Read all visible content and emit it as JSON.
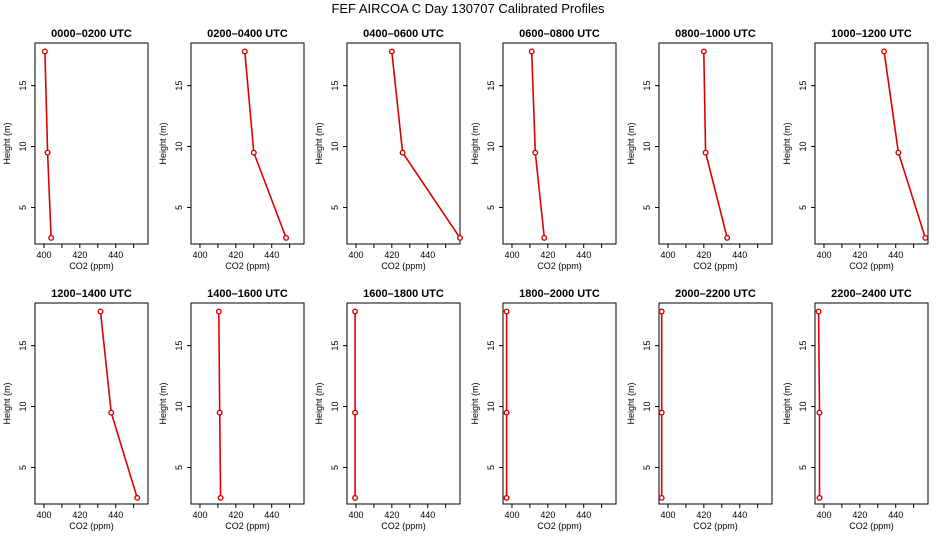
{
  "title": "FEF AIRCOA C  Day 130707  Calibrated Profiles",
  "colors": {
    "line": "#dd0000",
    "axis": "#000000"
  },
  "chart_data": [
    {
      "type": "line",
      "title": "0000–0200 UTC",
      "xlabel": "CO2 (ppm)",
      "ylabel": "Height (m)",
      "xlim": [
        395,
        458
      ],
      "ylim": [
        2,
        18.5
      ],
      "xticks": [
        400,
        420,
        440
      ],
      "yticks": [
        5,
        10,
        15
      ],
      "series": [
        {
          "x": [
            400.5,
            402.0,
            404.0
          ],
          "y": [
            17.8,
            9.5,
            2.5
          ]
        }
      ]
    },
    {
      "type": "line",
      "title": "0200–0400 UTC",
      "xlabel": "CO2 (ppm)",
      "ylabel": "Height (m)",
      "xlim": [
        395,
        458
      ],
      "ylim": [
        2,
        18.5
      ],
      "xticks": [
        400,
        420,
        440
      ],
      "yticks": [
        5,
        10,
        15
      ],
      "series": [
        {
          "x": [
            425.0,
            430.0,
            448.0
          ],
          "y": [
            17.8,
            9.5,
            2.5
          ]
        }
      ]
    },
    {
      "type": "line",
      "title": "0400–0600 UTC",
      "xlabel": "CO2 (ppm)",
      "ylabel": "Height (m)",
      "xlim": [
        395,
        458
      ],
      "ylim": [
        2,
        18.5
      ],
      "xticks": [
        400,
        420,
        440
      ],
      "yticks": [
        5,
        10,
        15
      ],
      "series": [
        {
          "x": [
            420.0,
            426.0,
            458.0
          ],
          "y": [
            17.8,
            9.5,
            2.5
          ]
        }
      ]
    },
    {
      "type": "line",
      "title": "0600–0800 UTC",
      "xlabel": "CO2 (ppm)",
      "ylabel": "Height (m)",
      "xlim": [
        395,
        458
      ],
      "ylim": [
        2,
        18.5
      ],
      "xticks": [
        400,
        420,
        440
      ],
      "yticks": [
        5,
        10,
        15
      ],
      "series": [
        {
          "x": [
            411.0,
            413.0,
            418.0
          ],
          "y": [
            17.8,
            9.5,
            2.5
          ]
        }
      ]
    },
    {
      "type": "line",
      "title": "0800–1000 UTC",
      "xlabel": "CO2 (ppm)",
      "ylabel": "Height (m)",
      "xlim": [
        395,
        458
      ],
      "ylim": [
        2,
        18.5
      ],
      "xticks": [
        400,
        420,
        440
      ],
      "yticks": [
        5,
        10,
        15
      ],
      "series": [
        {
          "x": [
            420.0,
            421.0,
            433.0
          ],
          "y": [
            17.8,
            9.5,
            2.5
          ]
        }
      ]
    },
    {
      "type": "line",
      "title": "1000–1200 UTC",
      "xlabel": "CO2 (ppm)",
      "ylabel": "Height (m)",
      "xlim": [
        395,
        458
      ],
      "ylim": [
        2,
        18.5
      ],
      "xticks": [
        400,
        420,
        440
      ],
      "yticks": [
        5,
        10,
        15
      ],
      "series": [
        {
          "x": [
            433.5,
            441.5,
            456.5
          ],
          "y": [
            17.8,
            9.5,
            2.5
          ]
        }
      ]
    },
    {
      "type": "line",
      "title": "1200–1400 UTC",
      "xlabel": "CO2 (ppm)",
      "ylabel": "Height (m)",
      "xlim": [
        395,
        458
      ],
      "ylim": [
        2,
        18.5
      ],
      "xticks": [
        400,
        420,
        440
      ],
      "yticks": [
        5,
        10,
        15
      ],
      "series": [
        {
          "x": [
            431.5,
            437.5,
            452.0
          ],
          "y": [
            17.8,
            9.5,
            2.5
          ]
        }
      ]
    },
    {
      "type": "line",
      "title": "1400–1600 UTC",
      "xlabel": "CO2 (ppm)",
      "ylabel": "Height (m)",
      "xlim": [
        395,
        458
      ],
      "ylim": [
        2,
        18.5
      ],
      "xticks": [
        400,
        420,
        440
      ],
      "yticks": [
        5,
        10,
        15
      ],
      "series": [
        {
          "x": [
            410.5,
            411.0,
            411.5
          ],
          "y": [
            17.8,
            9.5,
            2.5
          ]
        }
      ]
    },
    {
      "type": "line",
      "title": "1600–1800 UTC",
      "xlabel": "CO2 (ppm)",
      "ylabel": "Height (m)",
      "xlim": [
        395,
        458
      ],
      "ylim": [
        2,
        18.5
      ],
      "xticks": [
        400,
        420,
        440
      ],
      "yticks": [
        5,
        10,
        15
      ],
      "series": [
        {
          "x": [
            399.5,
            399.5,
            399.5
          ],
          "y": [
            17.8,
            9.5,
            2.5
          ]
        }
      ]
    },
    {
      "type": "line",
      "title": "1800–2000 UTC",
      "xlabel": "CO2 (ppm)",
      "ylabel": "Height (m)",
      "xlim": [
        395,
        458
      ],
      "ylim": [
        2,
        18.5
      ],
      "xticks": [
        400,
        420,
        440
      ],
      "yticks": [
        5,
        10,
        15
      ],
      "series": [
        {
          "x": [
            397.0,
            397.0,
            397.0
          ],
          "y": [
            17.8,
            9.5,
            2.5
          ]
        }
      ]
    },
    {
      "type": "line",
      "title": "2000–2200 UTC",
      "xlabel": "CO2 (ppm)",
      "ylabel": "Height (m)",
      "xlim": [
        395,
        458
      ],
      "ylim": [
        2,
        18.5
      ],
      "xticks": [
        400,
        420,
        440
      ],
      "yticks": [
        5,
        10,
        15
      ],
      "series": [
        {
          "x": [
            396.5,
            396.5,
            396.5
          ],
          "y": [
            17.8,
            9.5,
            2.5
          ]
        }
      ]
    },
    {
      "type": "line",
      "title": "2200–2400 UTC",
      "xlabel": "CO2 (ppm)",
      "ylabel": "Height (m)",
      "xlim": [
        395,
        458
      ],
      "ylim": [
        2,
        18.5
      ],
      "xticks": [
        400,
        420,
        440
      ],
      "yticks": [
        5,
        10,
        15
      ],
      "series": [
        {
          "x": [
            397.0,
            397.5,
            397.5
          ],
          "y": [
            17.8,
            9.5,
            2.5
          ]
        }
      ]
    }
  ]
}
